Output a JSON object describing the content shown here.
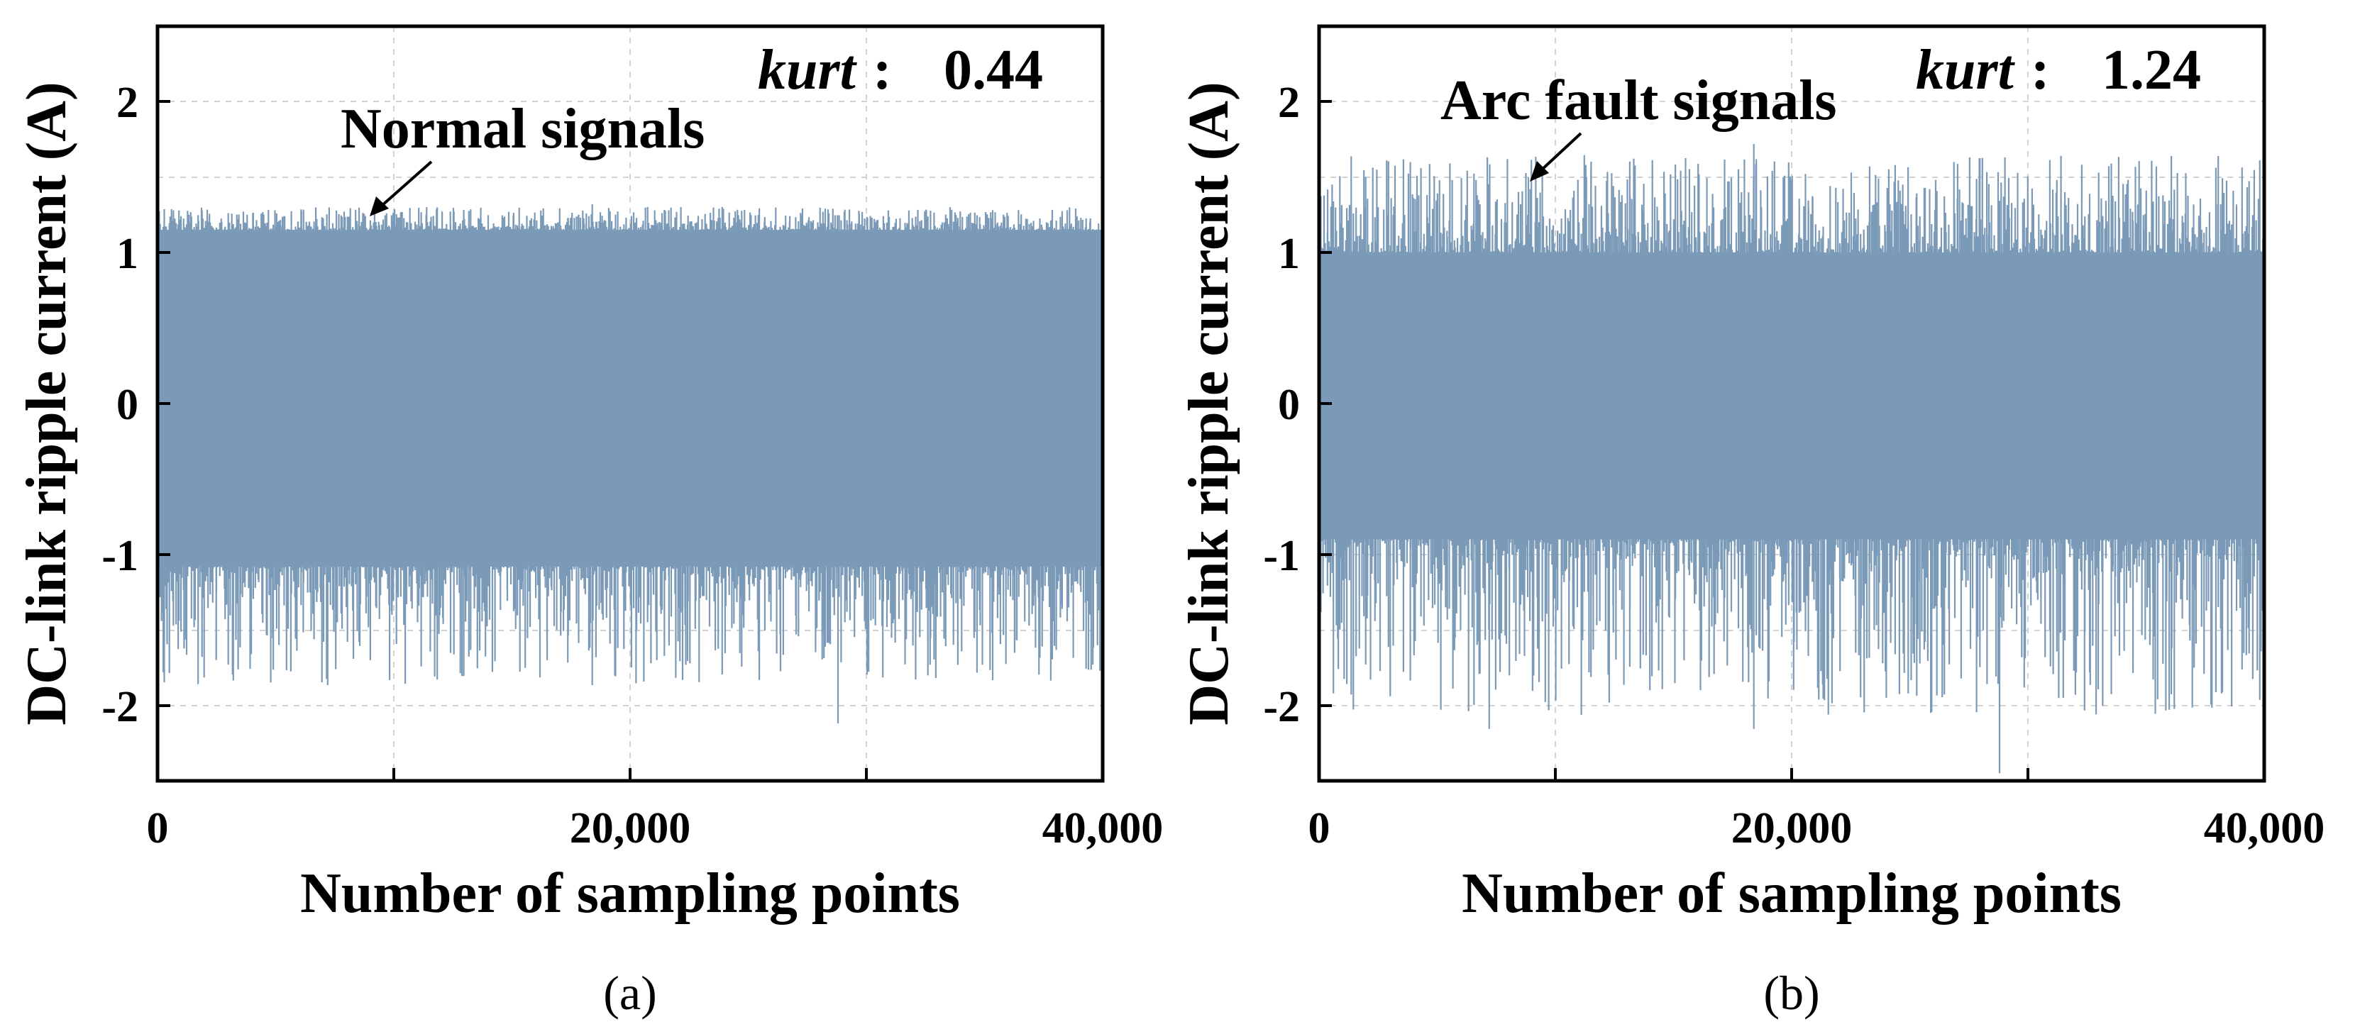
{
  "chart_data": [
    {
      "type": "line",
      "panel_caption": "(a)",
      "xlabel": "Number of sampling points",
      "ylabel": "DC-link ripple current (A)",
      "xlim": [
        0,
        40000
      ],
      "ylim": [
        -2.5,
        2.5
      ],
      "xticks": [
        0,
        20000,
        40000
      ],
      "xtick_labels": [
        "0",
        "20,000",
        "40,000"
      ],
      "yticks": [
        -2,
        -1,
        0,
        1,
        2
      ],
      "ytick_labels": [
        "-2",
        "-1",
        "0",
        "1",
        "2"
      ],
      "grid": true,
      "series": [
        {
          "color": "#7b9ab7",
          "n_points": 40000,
          "band": [
            -1.08,
            1.15
          ],
          "peak_max": 1.32,
          "peak_min": -2.12
        }
      ],
      "annotations": {
        "signal_label": "Normal signals",
        "kurt_label": "kurt",
        "kurt_separator": ":",
        "kurt_value": "0.44"
      }
    },
    {
      "type": "line",
      "panel_caption": "(b)",
      "xlabel": "Number of sampling points",
      "ylabel": "DC-link ripple current (A)",
      "xlim": [
        0,
        40000
      ],
      "ylim": [
        -2.5,
        2.5
      ],
      "xticks": [
        0,
        20000,
        40000
      ],
      "xtick_labels": [
        "0",
        "20,000",
        "40,000"
      ],
      "yticks": [
        -2,
        -1,
        0,
        1,
        2
      ],
      "ytick_labels": [
        "-2",
        "-1",
        "0",
        "1",
        "2"
      ],
      "grid": true,
      "series": [
        {
          "color": "#7b9ab7",
          "n_points": 40000,
          "band": [
            -0.9,
            1.0
          ],
          "peak_max": 1.72,
          "peak_min": -2.45
        }
      ],
      "annotations": {
        "signal_label": "Arc fault signals",
        "kurt_label": "kurt",
        "kurt_separator": ":",
        "kurt_value": "1.24"
      }
    }
  ]
}
